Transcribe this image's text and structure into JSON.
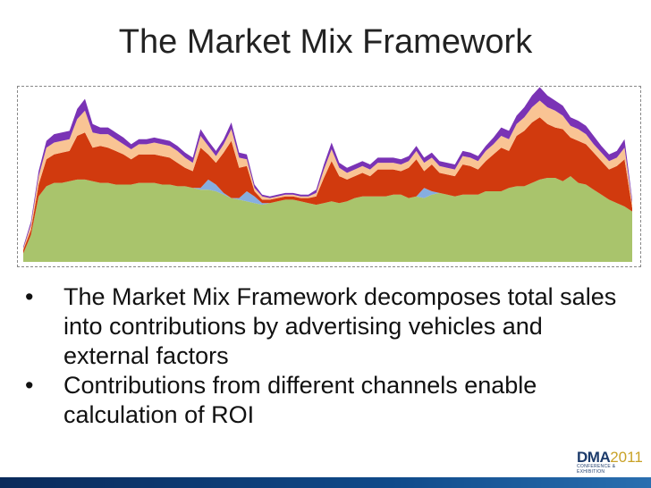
{
  "slide": {
    "title": "The Market Mix Framework",
    "bullets": [
      "The Market Mix Framework decomposes total sales into contributions by advertising vehicles and external factors",
      "Contributions from different channels enable calculation of ROI"
    ],
    "bullet_glyph": "•",
    "logo": {
      "main": "DMA",
      "year": "2011",
      "sub": "CONFERENCE & EXHIBITION"
    }
  },
  "chart_data": {
    "type": "area",
    "stacked": true,
    "grid": false,
    "legend": "none",
    "x": [
      0,
      1,
      2,
      3,
      4,
      5,
      6,
      7,
      8,
      9,
      10,
      11,
      12,
      13,
      14,
      15,
      16,
      17,
      18,
      19,
      20,
      21,
      22,
      23,
      24,
      25,
      26,
      27,
      28,
      29,
      30,
      31,
      32,
      33,
      34,
      35,
      36,
      37,
      38,
      39,
      40,
      41,
      42,
      43,
      44,
      45,
      46,
      47,
      48,
      49,
      50,
      51,
      52,
      53,
      54,
      55,
      56,
      57,
      58,
      59,
      60,
      61,
      62,
      63,
      64,
      65,
      66,
      67,
      68,
      69,
      70,
      71,
      72,
      73,
      74,
      75,
      76,
      77,
      78,
      79
    ],
    "series": [
      {
        "color": "#a9c46c",
        "values": [
          0.05,
          0.16,
          0.39,
          0.45,
          0.47,
          0.47,
          0.48,
          0.49,
          0.49,
          0.48,
          0.47,
          0.47,
          0.46,
          0.46,
          0.46,
          0.47,
          0.47,
          0.47,
          0.46,
          0.46,
          0.45,
          0.45,
          0.44,
          0.43,
          0.43,
          0.42,
          0.4,
          0.38,
          0.37,
          0.36,
          0.35,
          0.34,
          0.35,
          0.36,
          0.37,
          0.37,
          0.36,
          0.35,
          0.34,
          0.35,
          0.36,
          0.35,
          0.36,
          0.38,
          0.39,
          0.39,
          0.39,
          0.39,
          0.4,
          0.4,
          0.38,
          0.39,
          0.38,
          0.4,
          0.41,
          0.4,
          0.39,
          0.4,
          0.4,
          0.4,
          0.42,
          0.42,
          0.42,
          0.44,
          0.45,
          0.45,
          0.47,
          0.49,
          0.5,
          0.5,
          0.48,
          0.51,
          0.47,
          0.46,
          0.43,
          0.4,
          0.37,
          0.35,
          0.33,
          0.3
        ]
      },
      {
        "color": "#86aee0",
        "values": [
          0,
          0,
          0,
          0,
          0,
          0,
          0,
          0,
          0,
          0,
          0,
          0,
          0,
          0,
          0,
          0,
          0,
          0,
          0,
          0,
          0,
          0,
          0,
          0.01,
          0.06,
          0.04,
          0.01,
          0,
          0.01,
          0.06,
          0.04,
          0.01,
          0,
          0,
          0,
          0,
          0,
          0,
          0,
          0,
          0,
          0,
          0,
          0,
          0,
          0,
          0,
          0,
          0,
          0,
          0,
          0,
          0.06,
          0.02,
          0,
          0,
          0,
          0,
          0,
          0,
          0,
          0,
          0,
          0,
          0,
          0,
          0,
          0,
          0,
          0,
          0,
          0,
          0,
          0,
          0,
          0,
          0,
          0,
          0,
          0
        ]
      },
      {
        "color": "#d13a0e",
        "values": [
          0.02,
          0.03,
          0.07,
          0.16,
          0.17,
          0.18,
          0.18,
          0.26,
          0.28,
          0.2,
          0.22,
          0.21,
          0.2,
          0.18,
          0.15,
          0.17,
          0.17,
          0.17,
          0.17,
          0.16,
          0.14,
          0.11,
          0.1,
          0.24,
          0.15,
          0.13,
          0.24,
          0.34,
          0.18,
          0.15,
          0.03,
          0.02,
          0.02,
          0.02,
          0.02,
          0.02,
          0.02,
          0.03,
          0.05,
          0.15,
          0.24,
          0.16,
          0.13,
          0.13,
          0.14,
          0.12,
          0.16,
          0.16,
          0.15,
          0.14,
          0.18,
          0.22,
          0.1,
          0.16,
          0.12,
          0.12,
          0.12,
          0.18,
          0.17,
          0.15,
          0.18,
          0.22,
          0.26,
          0.22,
          0.3,
          0.33,
          0.36,
          0.37,
          0.32,
          0.3,
          0.31,
          0.23,
          0.25,
          0.24,
          0.22,
          0.2,
          0.18,
          0.22,
          0.28,
          0.02
        ]
      },
      {
        "color": "#f9c494",
        "values": [
          0.01,
          0.03,
          0.05,
          0.07,
          0.07,
          0.07,
          0.07,
          0.1,
          0.13,
          0.09,
          0.07,
          0.08,
          0.07,
          0.06,
          0.06,
          0.06,
          0.06,
          0.07,
          0.07,
          0.07,
          0.07,
          0.06,
          0.05,
          0.07,
          0.05,
          0.04,
          0.05,
          0.07,
          0.06,
          0.04,
          0.02,
          0.02,
          0.01,
          0.01,
          0.01,
          0.01,
          0.01,
          0.01,
          0.02,
          0.05,
          0.07,
          0.05,
          0.04,
          0.04,
          0.04,
          0.04,
          0.04,
          0.04,
          0.04,
          0.04,
          0.04,
          0.05,
          0.05,
          0.04,
          0.04,
          0.04,
          0.04,
          0.05,
          0.05,
          0.05,
          0.06,
          0.06,
          0.07,
          0.07,
          0.07,
          0.08,
          0.09,
          0.1,
          0.1,
          0.1,
          0.08,
          0.07,
          0.07,
          0.06,
          0.05,
          0.05,
          0.05,
          0.05,
          0.07,
          0.03
        ]
      },
      {
        "color": "#7a33b5",
        "values": [
          0.01,
          0.02,
          0.03,
          0.04,
          0.05,
          0.05,
          0.05,
          0.06,
          0.07,
          0.05,
          0.04,
          0.04,
          0.04,
          0.04,
          0.03,
          0.03,
          0.03,
          0.03,
          0.03,
          0.03,
          0.03,
          0.03,
          0.03,
          0.04,
          0.03,
          0.03,
          0.03,
          0.04,
          0.03,
          0.03,
          0.02,
          0.01,
          0.01,
          0.01,
          0.01,
          0.01,
          0.01,
          0.01,
          0.02,
          0.03,
          0.04,
          0.03,
          0.03,
          0.03,
          0.03,
          0.03,
          0.03,
          0.03,
          0.03,
          0.03,
          0.03,
          0.03,
          0.03,
          0.03,
          0.03,
          0.03,
          0.03,
          0.03,
          0.03,
          0.03,
          0.03,
          0.04,
          0.05,
          0.05,
          0.05,
          0.06,
          0.07,
          0.08,
          0.07,
          0.06,
          0.06,
          0.05,
          0.05,
          0.05,
          0.05,
          0.04,
          0.04,
          0.04,
          0.05,
          0.02
        ]
      }
    ]
  }
}
